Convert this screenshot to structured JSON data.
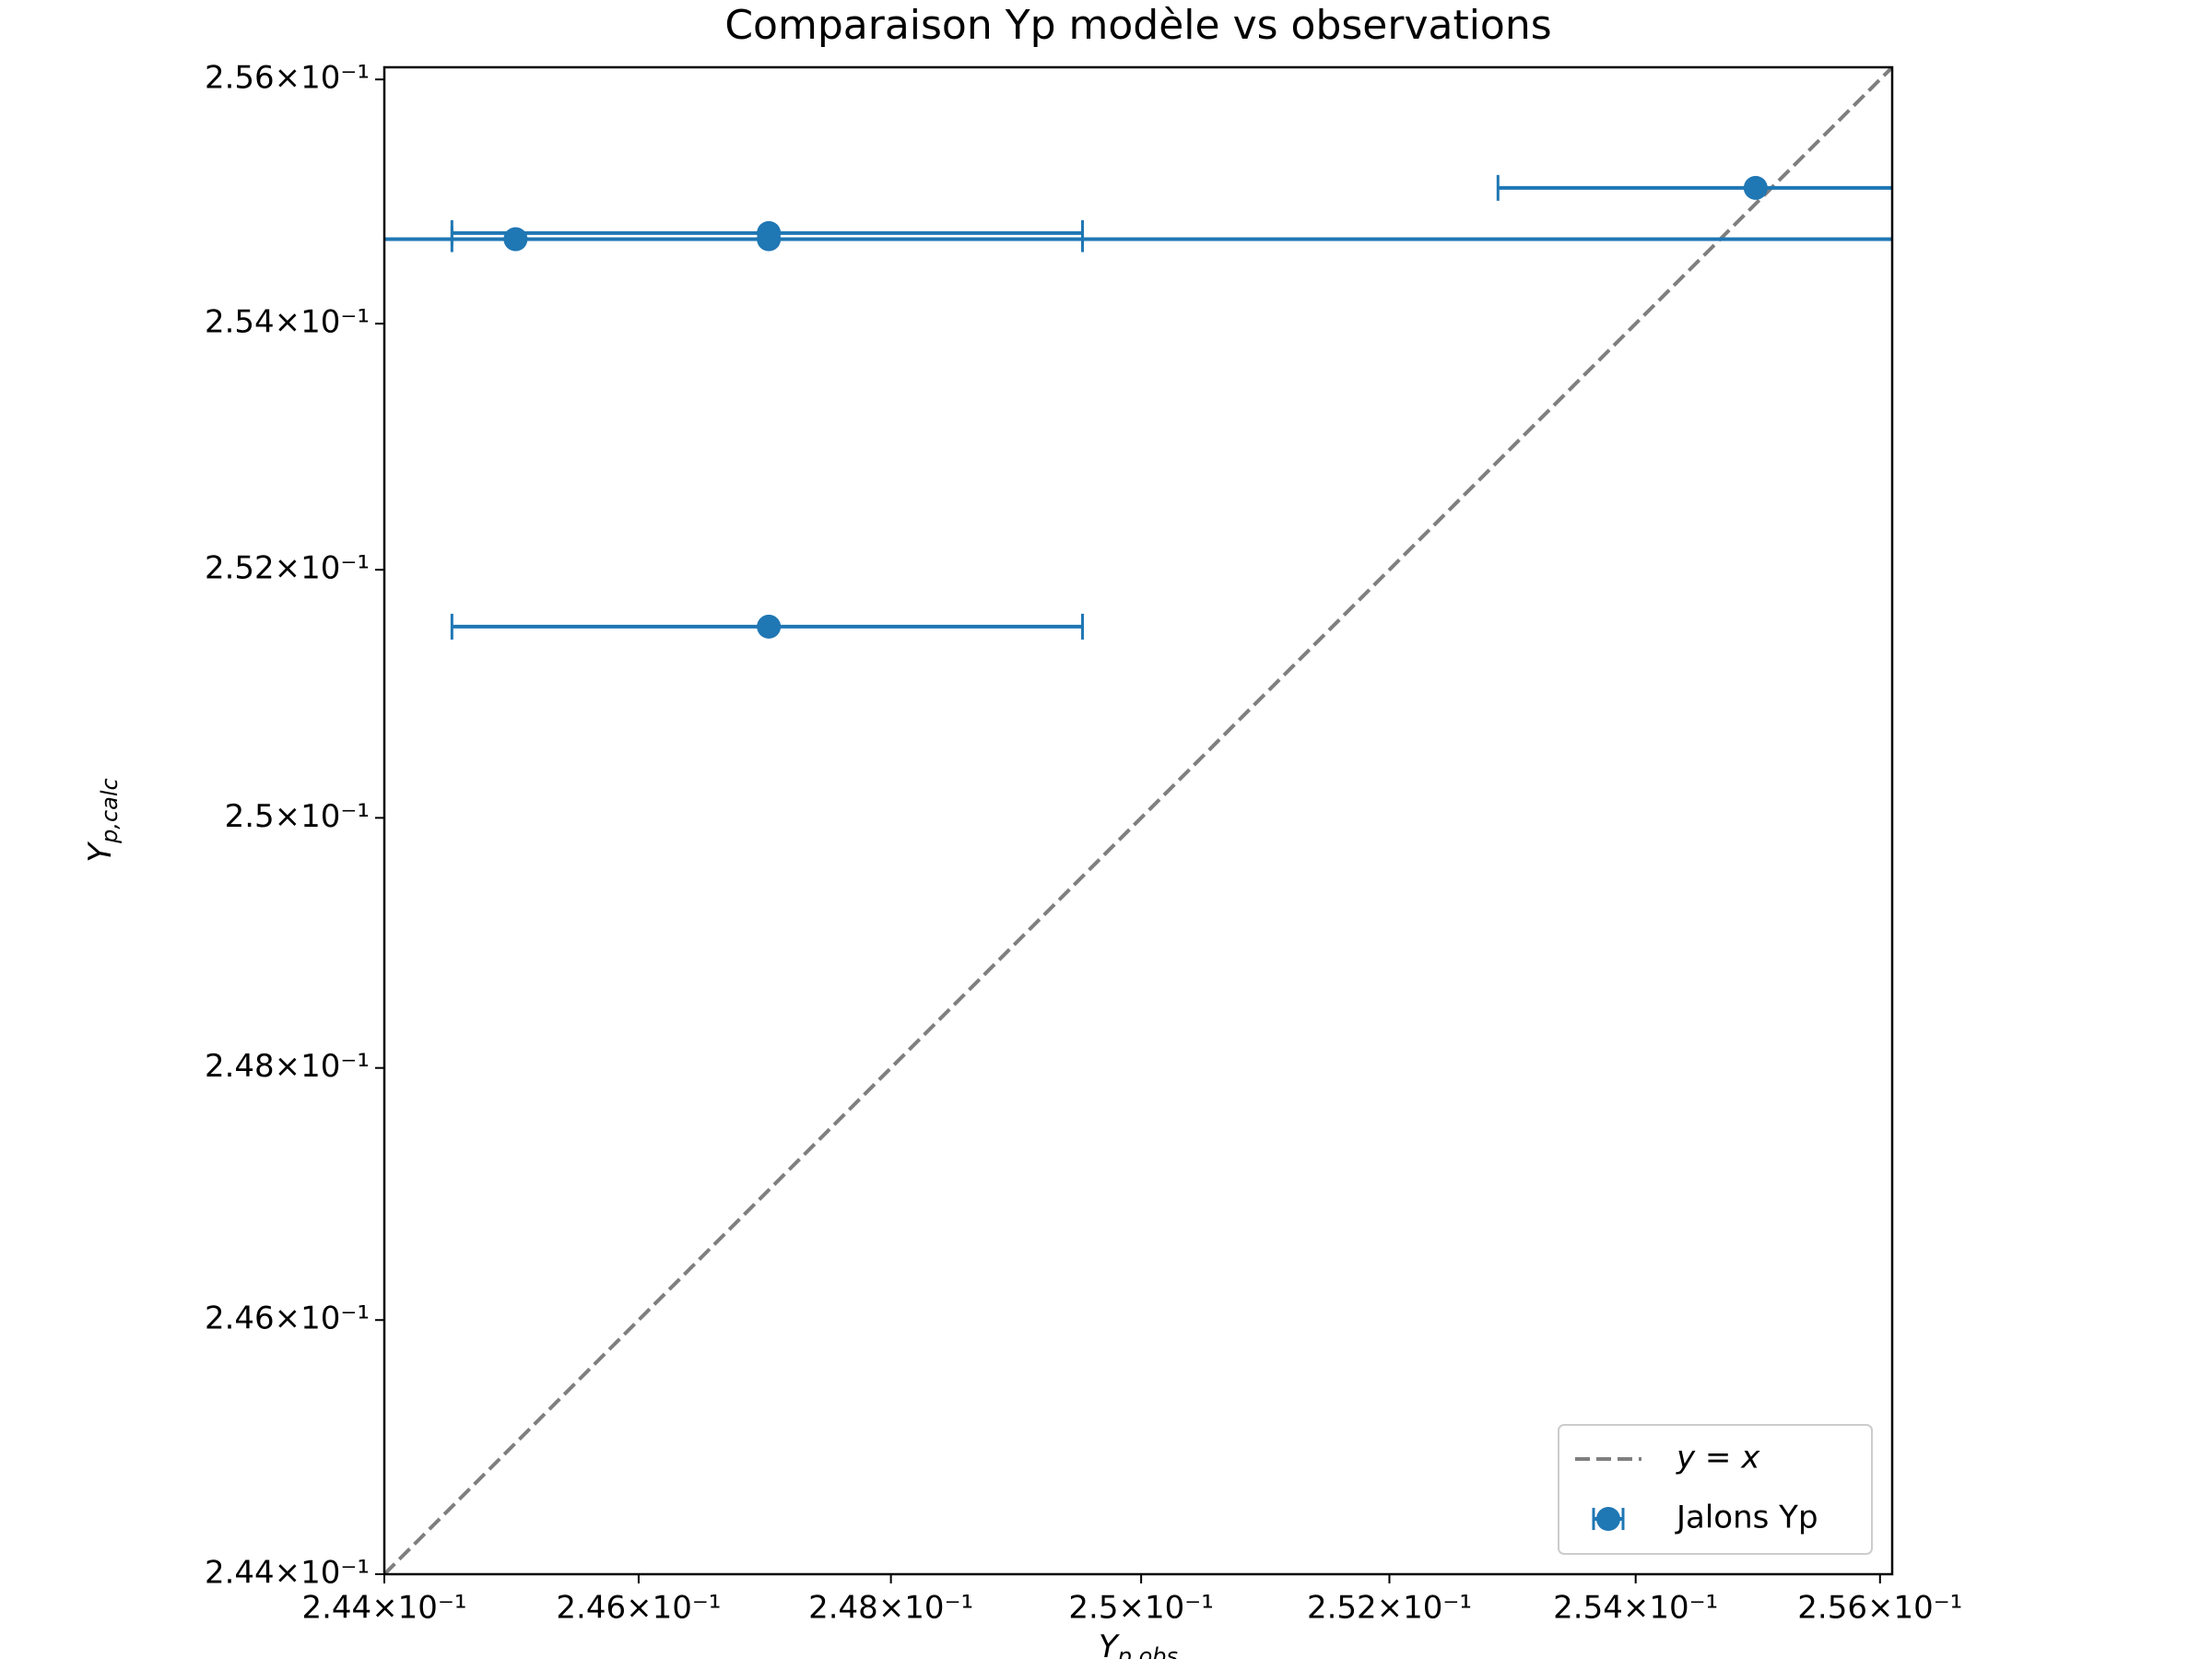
{
  "chart_data": {
    "type": "errorbar",
    "title": "Comparaison Yp modèle vs observations",
    "xlabel": {
      "main": "Y",
      "sub": "p,obs"
    },
    "ylabel": {
      "main": "Y",
      "sub": "p,calc"
    },
    "xscale": "log",
    "yscale": "log",
    "xlim": [
      0.244,
      0.2561
    ],
    "ylim": [
      0.244,
      0.2561
    ],
    "xticks": [
      {
        "value": 0.244,
        "label": "2.44×10⁻¹"
      },
      {
        "value": 0.246,
        "label": "2.46×10⁻¹"
      },
      {
        "value": 0.248,
        "label": "2.48×10⁻¹"
      },
      {
        "value": 0.25,
        "label": "2.5×10⁻¹"
      },
      {
        "value": 0.252,
        "label": "2.52×10⁻¹"
      },
      {
        "value": 0.254,
        "label": "2.54×10⁻¹"
      },
      {
        "value": 0.256,
        "label": "2.56×10⁻¹"
      }
    ],
    "yticks": [
      {
        "value": 0.244,
        "label": "2.44×10⁻¹"
      },
      {
        "value": 0.246,
        "label": "2.46×10⁻¹"
      },
      {
        "value": 0.248,
        "label": "2.48×10⁻¹"
      },
      {
        "value": 0.25,
        "label": "2.5×10⁻¹"
      },
      {
        "value": 0.252,
        "label": "2.52×10⁻¹"
      },
      {
        "value": 0.254,
        "label": "2.54×10⁻¹"
      },
      {
        "value": 0.256,
        "label": "2.56×10⁻¹"
      }
    ],
    "reference_line": {
      "name": "y = x",
      "color": "#7f7f7f",
      "style": "dashed"
    },
    "series": [
      {
        "name": "Jalons Yp",
        "color": "#1f77b4",
        "x": [
          0.24503,
          0.24703,
          0.24703,
          0.24703,
          0.25498
        ],
        "values": [
          0.25469,
          0.25474,
          0.25469,
          0.25154,
          0.25511
        ],
        "xerr": [
          0.012,
          0.0025,
          0.0025,
          0.0025,
          0.0021
        ]
      }
    ],
    "legend": "lower right"
  }
}
